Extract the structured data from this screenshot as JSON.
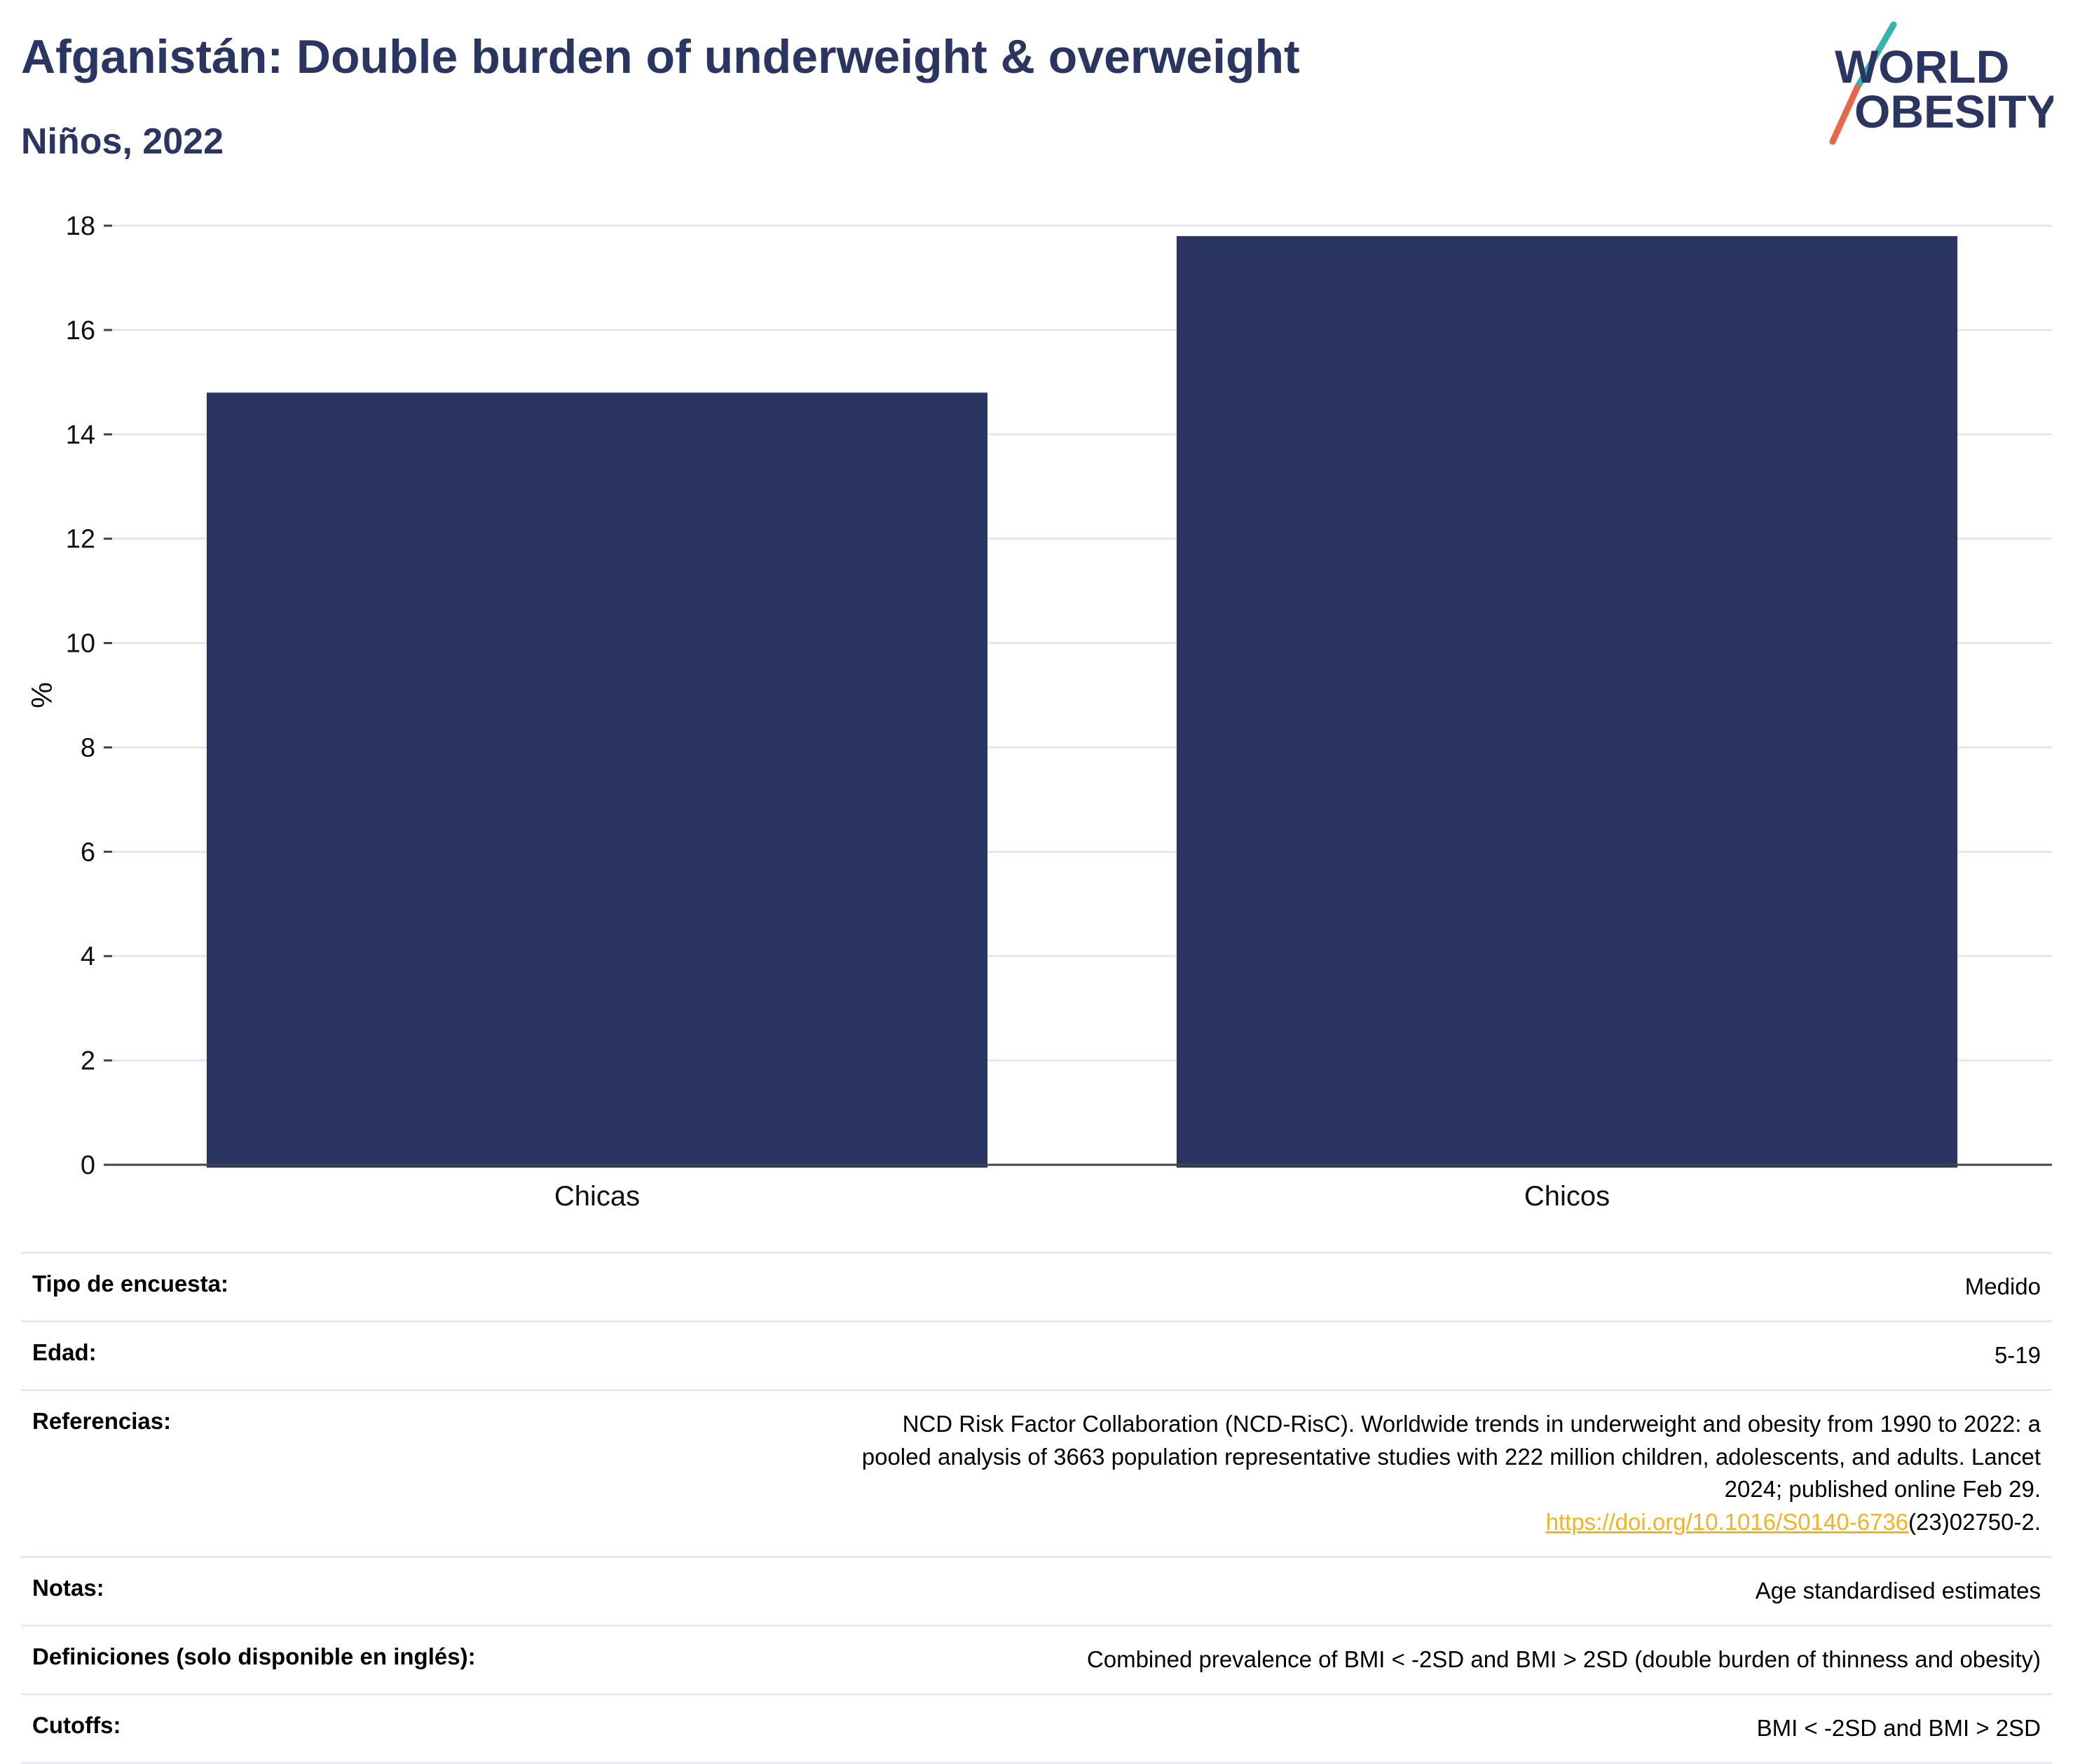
{
  "header": {
    "title": "Afganistán: Double burden of underweight & overweight",
    "subtitle": "Niños, 2022"
  },
  "logo": {
    "line1": "WORLD",
    "line2": "OBESITY",
    "text_color": "#2b3562",
    "slash_color_top": "#35b3ae",
    "slash_color_bottom": "#e8664c"
  },
  "chart_data": {
    "type": "bar",
    "categories": [
      "Chicas",
      "Chicos"
    ],
    "values": [
      14.8,
      17.8
    ],
    "ylabel": "%",
    "xlabel": "",
    "ylim": [
      0,
      18
    ],
    "yticks": [
      0,
      2,
      4,
      6,
      8,
      10,
      12,
      14,
      16,
      18
    ],
    "grid": true,
    "bar_color": "#2b3562"
  },
  "meta": {
    "rows": [
      {
        "key": "Tipo de encuesta:",
        "value": "Medido"
      },
      {
        "key": "Edad:",
        "value": "5-19"
      },
      {
        "key": "Referencias:",
        "value": "NCD Risk Factor Collaboration (NCD-RisC). Worldwide trends in underweight and obesity from 1990 to 2022: a pooled analysis of 3663 population representative studies with 222 million children, adolescents, and adults. Lancet 2024; published online Feb 29.",
        "link": "https://doi.org/10.1016/S0140-6736",
        "link_suffix": "(23)02750-2."
      },
      {
        "key": "Notas:",
        "value": "Age standardised estimates"
      },
      {
        "key": "Definiciones (solo disponible en inglés):",
        "value": "Combined prevalence of BMI < -2SD and BMI > 2SD (double burden of thinness and obesity)"
      },
      {
        "key": "Cutoffs:",
        "value": "BMI < -2SD and BMI > 2SD"
      }
    ]
  }
}
